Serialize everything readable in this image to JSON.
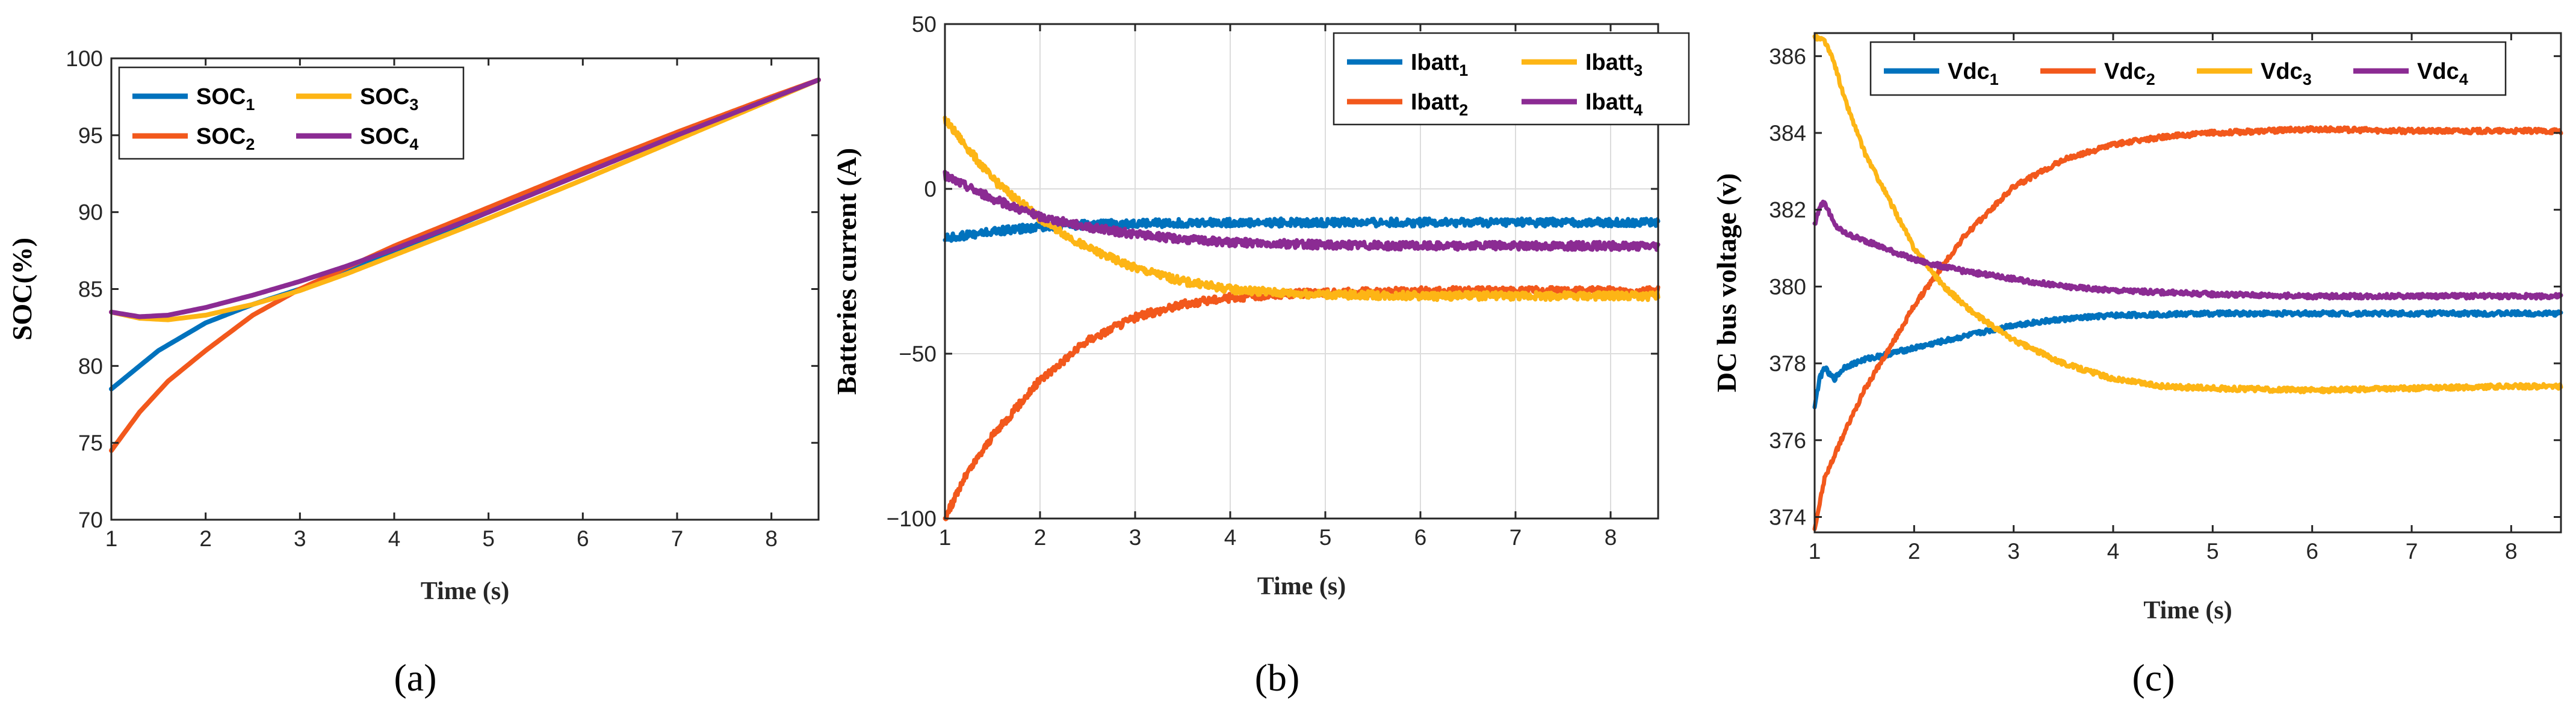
{
  "colors": {
    "blue": "#0072BD",
    "orange": "#F2581C",
    "yellow": "#FDB515",
    "purple": "#8B2B93"
  },
  "chart_data": [
    {
      "type": "line",
      "panel_label": "(a)",
      "xlabel": "Time (s)",
      "ylabel": "SOC(%)",
      "xlim": [
        1,
        8.5
      ],
      "ylim": [
        70,
        100
      ],
      "xticks": [
        1,
        2,
        3,
        4,
        5,
        6,
        7,
        8
      ],
      "yticks": [
        70,
        75,
        80,
        85,
        90,
        95,
        100
      ],
      "grid": false,
      "legend_position": "top-left",
      "legend_columns": 2,
      "series": [
        {
          "name": "SOC",
          "sub": "1",
          "color": "blue",
          "x": [
            1,
            1.5,
            2,
            2.5,
            3,
            3.5,
            4,
            5,
            6,
            7,
            8,
            8.5
          ],
          "y": [
            78.5,
            81.0,
            82.8,
            84.0,
            85.0,
            86.2,
            87.4,
            90.0,
            92.6,
            95.0,
            97.4,
            98.6
          ]
        },
        {
          "name": "SOC",
          "sub": "2",
          "color": "orange",
          "x": [
            1,
            1.3,
            1.6,
            2,
            2.5,
            3,
            3.5,
            4,
            5,
            6,
            7,
            8,
            8.5
          ],
          "y": [
            74.5,
            77.0,
            79.0,
            81.0,
            83.3,
            85.0,
            86.4,
            87.8,
            90.3,
            92.8,
            95.2,
            97.5,
            98.6
          ]
        },
        {
          "name": "SOC",
          "sub": "3",
          "color": "yellow",
          "x": [
            1,
            1.3,
            1.6,
            2,
            2.5,
            3,
            3.5,
            4,
            5,
            6,
            7,
            8,
            8.5
          ],
          "y": [
            83.5,
            83.1,
            83.0,
            83.3,
            84.0,
            84.9,
            86.0,
            87.2,
            89.6,
            92.1,
            94.7,
            97.3,
            98.6
          ]
        },
        {
          "name": "SOC",
          "sub": "4",
          "color": "purple",
          "x": [
            1,
            1.3,
            1.6,
            2,
            2.5,
            3,
            3.5,
            4,
            5,
            6,
            7,
            8,
            8.5
          ],
          "y": [
            83.5,
            83.2,
            83.3,
            83.8,
            84.6,
            85.5,
            86.5,
            87.6,
            90.0,
            92.5,
            95.0,
            97.4,
            98.6
          ]
        }
      ]
    },
    {
      "type": "line",
      "panel_label": "(b)",
      "xlabel": "Time (s)",
      "ylabel": "Batteries current (A)",
      "xlim": [
        1,
        8.5
      ],
      "ylim": [
        -100,
        50
      ],
      "xticks": [
        1,
        2,
        3,
        4,
        5,
        6,
        7,
        8
      ],
      "yticks": [
        -100,
        -50,
        0,
        50
      ],
      "grid": true,
      "legend_position": "top-right",
      "legend_columns": 2,
      "series": [
        {
          "name": "Ibatt",
          "sub": "1",
          "color": "blue",
          "noise": 1.2,
          "x": [
            1,
            1.5,
            2,
            2.5,
            3,
            4,
            5,
            6,
            7,
            8,
            8.5
          ],
          "y": [
            -15,
            -13,
            -11.5,
            -10.8,
            -10.5,
            -10.2,
            -10.2,
            -10.2,
            -10.2,
            -10.2,
            -10.2
          ]
        },
        {
          "name": "Ibatt",
          "sub": "2",
          "color": "orange",
          "noise": 1.2,
          "x": [
            1,
            1.2,
            1.5,
            2,
            2.5,
            3,
            3.5,
            4,
            4.5,
            5,
            6,
            7,
            8,
            8.5
          ],
          "y": [
            -100,
            -88,
            -75,
            -58,
            -46,
            -39,
            -35,
            -33,
            -32,
            -31.5,
            -31,
            -31,
            -31,
            -31
          ]
        },
        {
          "name": "Ibatt",
          "sub": "3",
          "color": "yellow",
          "noise": 1.2,
          "x": [
            1,
            1.5,
            2,
            2.5,
            3,
            3.5,
            4,
            4.5,
            5,
            6,
            7,
            8,
            8.5
          ],
          "y": [
            21,
            3,
            -9,
            -18,
            -24,
            -28,
            -30.5,
            -31.5,
            -32,
            -32.5,
            -32.5,
            -32.5,
            -32.5
          ]
        },
        {
          "name": "Ibatt",
          "sub": "4",
          "color": "purple",
          "noise": 1.2,
          "x": [
            1,
            1.5,
            2,
            2.5,
            3,
            3.5,
            4,
            5,
            6,
            7,
            8,
            8.5
          ],
          "y": [
            4,
            -3,
            -8.5,
            -11.5,
            -13.8,
            -15.2,
            -16.2,
            -17,
            -17.3,
            -17.3,
            -17.3,
            -17.3
          ]
        }
      ]
    },
    {
      "type": "line",
      "panel_label": "(c)",
      "xlabel": "Time (s)",
      "ylabel": "DC bus voltage (v)",
      "xlim": [
        1,
        8.5
      ],
      "ylim": [
        373.6,
        386.6
      ],
      "xticks": [
        1,
        2,
        3,
        4,
        5,
        6,
        7,
        8
      ],
      "yticks": [
        374,
        376,
        378,
        380,
        382,
        384,
        386
      ],
      "grid": false,
      "legend_position": "top",
      "legend_columns": 4,
      "series": [
        {
          "name": "Vdc",
          "sub": "1",
          "color": "blue",
          "noise": 0.06,
          "x": [
            1,
            1.05,
            1.1,
            1.15,
            1.2,
            1.3,
            1.5,
            2,
            2.5,
            3,
            3.5,
            4,
            5,
            6,
            7,
            8,
            8.5
          ],
          "y": [
            376.9,
            377.6,
            377.9,
            377.7,
            377.6,
            377.9,
            378.1,
            378.4,
            378.7,
            379.0,
            379.15,
            379.25,
            379.3,
            379.3,
            379.3,
            379.3,
            379.3
          ]
        },
        {
          "name": "Vdc",
          "sub": "2",
          "color": "orange",
          "noise": 0.06,
          "x": [
            1,
            1.1,
            1.3,
            1.5,
            1.8,
            2,
            2.5,
            3,
            3.5,
            4,
            4.5,
            5,
            6,
            7,
            8,
            8.5
          ],
          "y": [
            373.7,
            375.0,
            376.2,
            377.3,
            378.6,
            379.5,
            381.3,
            382.6,
            383.3,
            383.7,
            383.9,
            384.0,
            384.1,
            384.05,
            384.05,
            384.05
          ]
        },
        {
          "name": "Vdc",
          "sub": "3",
          "color": "yellow",
          "noise": 0.06,
          "x": [
            1,
            1.1,
            1.2,
            1.3,
            1.5,
            1.8,
            2,
            2.3,
            2.6,
            3,
            3.5,
            4,
            4.5,
            5,
            6,
            7,
            8,
            8.5
          ],
          "y": [
            386.5,
            386.4,
            385.8,
            384.9,
            383.5,
            382.0,
            381.0,
            380.0,
            379.3,
            378.6,
            378.0,
            377.6,
            377.4,
            377.35,
            377.3,
            377.35,
            377.4,
            377.4
          ]
        },
        {
          "name": "Vdc",
          "sub": "4",
          "color": "purple",
          "noise": 0.06,
          "x": [
            1,
            1.05,
            1.1,
            1.15,
            1.2,
            1.3,
            1.5,
            2,
            2.5,
            3,
            3.5,
            4,
            5,
            6,
            7,
            8,
            8.5
          ],
          "y": [
            381.6,
            382.1,
            382.2,
            381.9,
            381.6,
            381.4,
            381.2,
            380.7,
            380.4,
            380.2,
            380.0,
            379.9,
            379.8,
            379.75,
            379.75,
            379.75,
            379.75
          ]
        }
      ]
    }
  ]
}
